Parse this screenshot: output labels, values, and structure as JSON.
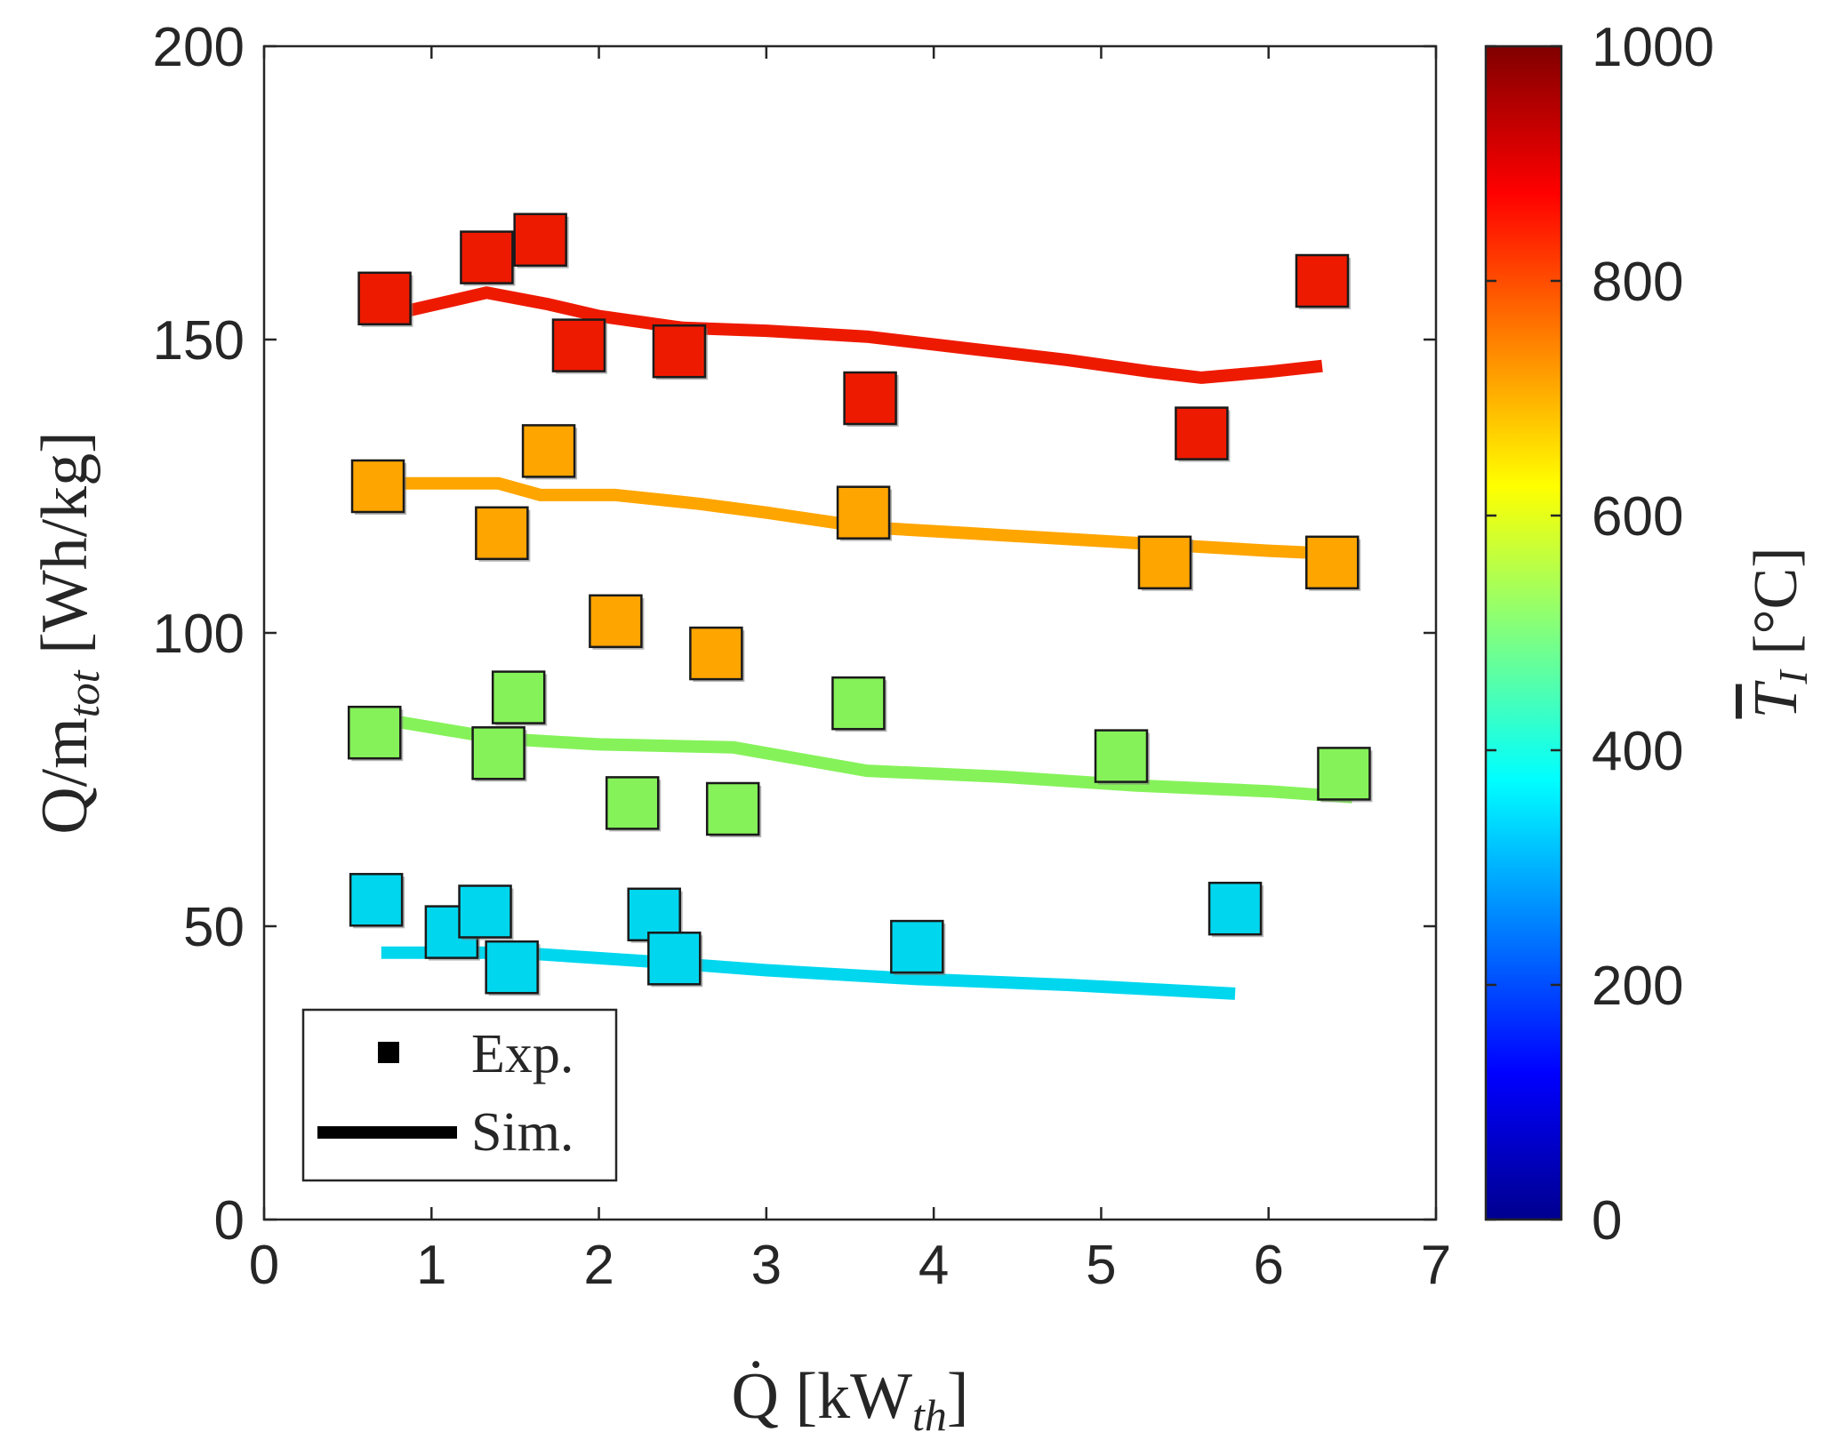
{
  "chart_data": {
    "type": "scatter",
    "title": "",
    "xlabel": {
      "main": "Q̇ [kW",
      "sub": "th",
      "close": "]"
    },
    "ylabel": {
      "main": "Q/m",
      "sub": "tot",
      "rest": " [Wh/kg]"
    },
    "xlim": [
      0,
      7
    ],
    "ylim": [
      0,
      200
    ],
    "x_ticks": [
      "0",
      "1",
      "2",
      "3",
      "4",
      "5",
      "6",
      "7"
    ],
    "y_ticks": [
      "0",
      "50",
      "100",
      "150",
      "200"
    ],
    "grid": false,
    "legend": {
      "position": "bottom-left",
      "entries": [
        {
          "marker": "square",
          "label": "Exp."
        },
        {
          "marker": "line",
          "label": "Sim."
        }
      ]
    },
    "colorbar": {
      "label": {
        "main": "T",
        "sub": "I",
        "rest": " [°C]"
      },
      "range": [
        0,
        1000
      ],
      "ticks": [
        "0",
        "200",
        "400",
        "600",
        "800",
        "1000"
      ],
      "colormap": "jet"
    },
    "series": [
      {
        "name": "T≈900",
        "color": "#ee1a00",
        "exp": [
          [
            0.72,
            157
          ],
          [
            1.33,
            164
          ],
          [
            1.65,
            167
          ],
          [
            1.88,
            149
          ],
          [
            2.48,
            148
          ],
          [
            3.62,
            140
          ],
          [
            5.6,
            134
          ],
          [
            6.32,
            160
          ]
        ],
        "sim": [
          [
            0.72,
            154
          ],
          [
            1.33,
            158
          ],
          [
            1.7,
            156
          ],
          [
            2.0,
            154
          ],
          [
            2.5,
            152
          ],
          [
            3.0,
            151.5
          ],
          [
            3.6,
            150.5
          ],
          [
            4.2,
            148.5
          ],
          [
            4.8,
            146.5
          ],
          [
            5.3,
            144.5
          ],
          [
            5.6,
            143.5
          ],
          [
            6.0,
            144.5
          ],
          [
            6.32,
            145.5
          ]
        ]
      },
      {
        "name": "T≈720",
        "color": "#ffa500",
        "exp": [
          [
            0.68,
            125
          ],
          [
            1.42,
            117
          ],
          [
            1.7,
            131
          ],
          [
            2.1,
            102
          ],
          [
            2.7,
            96.5
          ],
          [
            3.58,
            120.5
          ],
          [
            5.38,
            112
          ],
          [
            6.38,
            112
          ]
        ],
        "sim": [
          [
            0.68,
            125.5
          ],
          [
            1.4,
            125.5
          ],
          [
            1.65,
            123.5
          ],
          [
            2.1,
            123.5
          ],
          [
            2.6,
            122
          ],
          [
            3.0,
            120.5
          ],
          [
            3.6,
            118
          ],
          [
            4.2,
            117
          ],
          [
            4.8,
            116
          ],
          [
            5.4,
            115
          ],
          [
            6.0,
            114
          ],
          [
            6.38,
            113.5
          ]
        ]
      },
      {
        "name": "T≈530",
        "color": "#86f25a",
        "exp": [
          [
            0.66,
            83
          ],
          [
            1.4,
            79.5
          ],
          [
            1.52,
            89
          ],
          [
            2.2,
            71
          ],
          [
            2.8,
            70
          ],
          [
            3.55,
            88
          ],
          [
            5.12,
            79
          ],
          [
            6.45,
            76
          ]
        ],
        "sim": [
          [
            0.66,
            85.5
          ],
          [
            1.4,
            82
          ],
          [
            2.0,
            81
          ],
          [
            2.8,
            80.5
          ],
          [
            3.6,
            76.5
          ],
          [
            4.4,
            75.5
          ],
          [
            5.2,
            74
          ],
          [
            6.0,
            73
          ],
          [
            6.5,
            72
          ]
        ]
      },
      {
        "name": "T≈380",
        "color": "#00d7ef",
        "exp": [
          [
            0.67,
            54.5
          ],
          [
            1.12,
            49
          ],
          [
            1.32,
            52.5
          ],
          [
            1.48,
            43
          ],
          [
            2.33,
            52
          ],
          [
            2.45,
            44.5
          ],
          [
            3.9,
            46.5
          ],
          [
            5.8,
            53
          ]
        ],
        "sim": [
          [
            0.7,
            45.5
          ],
          [
            1.5,
            45.5
          ],
          [
            2.3,
            44
          ],
          [
            3.0,
            42.5
          ],
          [
            3.9,
            41
          ],
          [
            4.8,
            40
          ],
          [
            5.8,
            38.5
          ]
        ]
      }
    ]
  }
}
